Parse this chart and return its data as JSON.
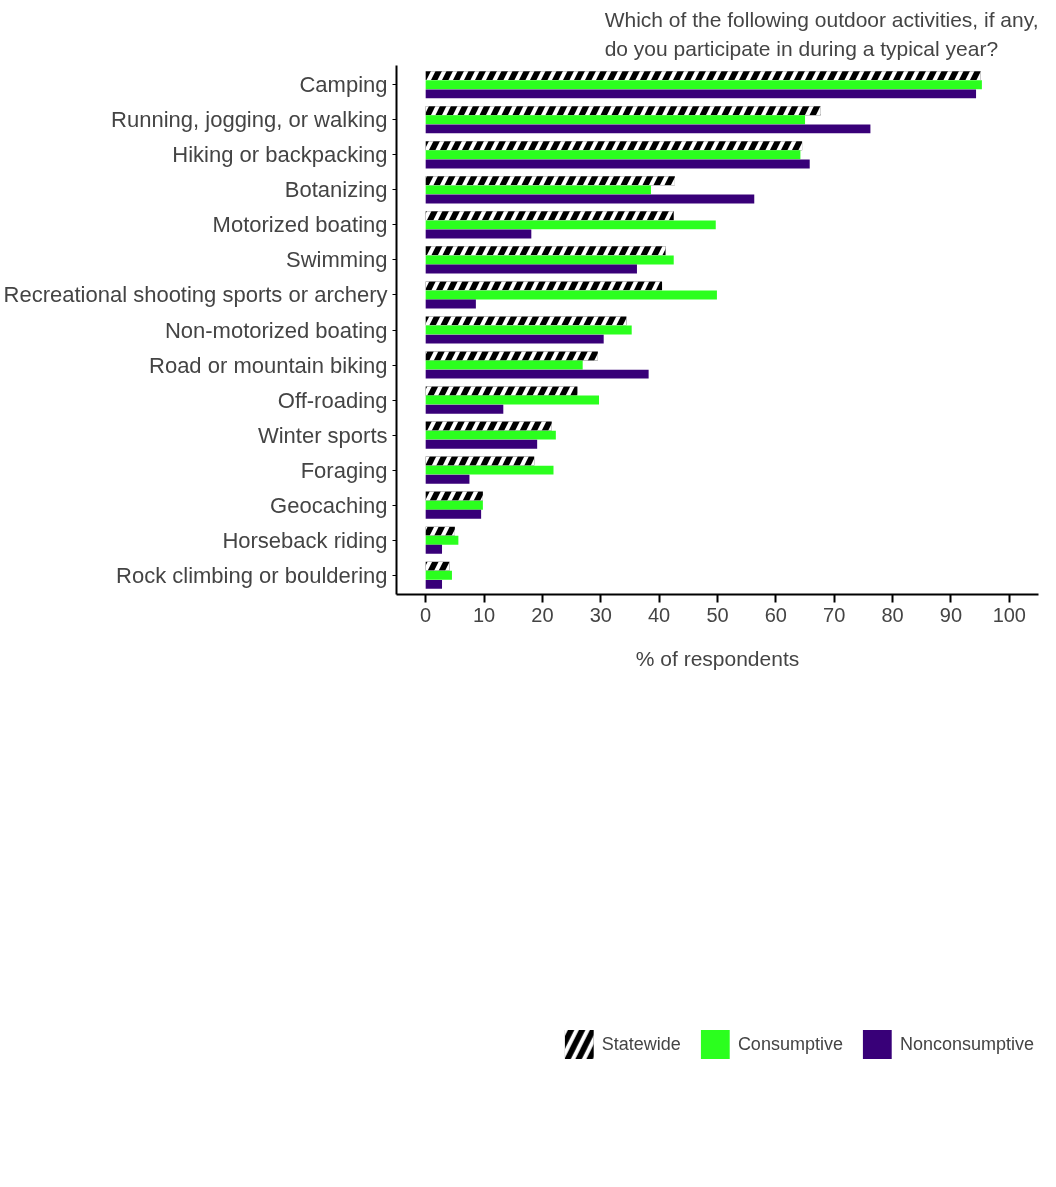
{
  "chart_data": {
    "type": "bar",
    "orientation": "horizontal",
    "title": "Which of the following outdoor activities, if any, do you participate in during a typical year?",
    "xlabel": "% of respondents",
    "categories": [
      "Camping",
      "Running, jogging, or walking",
      "Hiking or backpacking",
      "Botanizing",
      "Motorized boating",
      "Swimming",
      "Recreational shooting sports or archery",
      "Non-motorized boating",
      "Road or mountain biking",
      "Off-roading",
      "Winter sports",
      "Foraging",
      "Geocaching",
      "Horseback riding",
      "Rock climbing or bouldering"
    ],
    "series": [
      {
        "name": "Statewide",
        "color": "#000000",
        "values": [
          95.1,
          67.7,
          64.5,
          42.7,
          42.5,
          41.1,
          40.5,
          34.4,
          29.5,
          26.0,
          21.6,
          18.6,
          9.8,
          5.0,
          4.1
        ]
      },
      {
        "name": "Consumptive",
        "color": "#2bff1e",
        "values": [
          95.3,
          65.0,
          64.2,
          38.6,
          49.7,
          42.5,
          49.9,
          35.3,
          26.9,
          29.7,
          22.3,
          21.9,
          9.8,
          5.6,
          4.5
        ]
      },
      {
        "name": "Nonconsumptive",
        "color": "#380078",
        "values": [
          94.3,
          76.2,
          65.8,
          56.3,
          18.1,
          36.2,
          8.6,
          30.5,
          38.2,
          13.3,
          19.1,
          7.5,
          9.5,
          2.8,
          2.8
        ]
      }
    ],
    "xlim": [
      -5,
      105
    ],
    "xticks": [
      0,
      10,
      20,
      30,
      40,
      50,
      60,
      70,
      80,
      90,
      100
    ],
    "grid": false,
    "legend": "bottom"
  }
}
